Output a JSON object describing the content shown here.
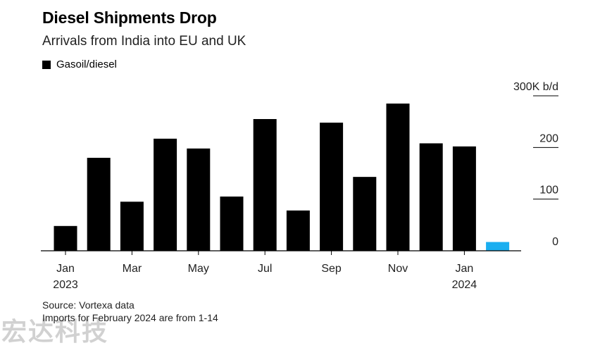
{
  "header": {
    "title": "Diesel Shipments Drop",
    "subtitle": "Arrivals from India into EU and UK"
  },
  "legend": {
    "label": "Gasoil/diesel"
  },
  "footer": {
    "source": "Source: Vortexa data",
    "note": "Imports for February 2024 are from 1-14"
  },
  "watermark": {
    "text": "宏达科技"
  },
  "colors": {
    "bar": "#000000",
    "highlight": "#1aaef0",
    "axis": "#000000",
    "grid": "#cccccc"
  },
  "chart_data": {
    "type": "bar",
    "categories": [
      "Jan 2023",
      "Feb 2023",
      "Mar 2023",
      "Apr 2023",
      "May 2023",
      "Jun 2023",
      "Jul 2023",
      "Aug 2023",
      "Sep 2023",
      "Oct 2023",
      "Nov 2023",
      "Dec 2023",
      "Jan 2024",
      "Feb 2024"
    ],
    "series": [
      {
        "name": "Gasoil/diesel",
        "values": [
          48,
          180,
          95,
          217,
          198,
          105,
          255,
          78,
          248,
          143,
          285,
          208,
          202,
          17
        ]
      }
    ],
    "highlight_index": 13,
    "ylabel": "",
    "ylim": [
      0,
      300
    ],
    "y_ticks": [
      {
        "value": 0,
        "label": "0"
      },
      {
        "value": 100,
        "label": "100"
      },
      {
        "value": 200,
        "label": "200"
      },
      {
        "value": 300,
        "label": "300K b/d"
      }
    ],
    "x_ticks": [
      {
        "index": 0,
        "line1": "Jan",
        "line2": "2023"
      },
      {
        "index": 2,
        "line1": "Mar",
        "line2": ""
      },
      {
        "index": 4,
        "line1": "May",
        "line2": ""
      },
      {
        "index": 6,
        "line1": "Jul",
        "line2": ""
      },
      {
        "index": 8,
        "line1": "Sep",
        "line2": ""
      },
      {
        "index": 10,
        "line1": "Nov",
        "line2": ""
      },
      {
        "index": 12,
        "line1": "Jan",
        "line2": "2024"
      }
    ],
    "grid": true,
    "y_axis_side": "right"
  }
}
